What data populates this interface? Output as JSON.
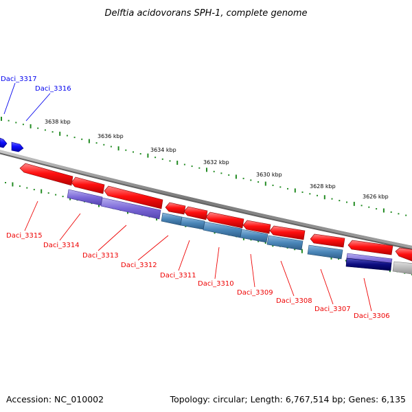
{
  "title": "Delftia acidovorans SPH-1, complete genome",
  "footer": {
    "accession": "Accession: NC_010002",
    "summary": "Topology: circular; Length: 6,767,514 bp; Genes: 6,135"
  },
  "colors": {
    "forward_gene": "#0000ee",
    "reverse_gene": "#ee0000",
    "backbone": "#808080",
    "tick": "#228b22",
    "cds_purple": "#7b68d8",
    "cds_steelblue": "#4a86b8",
    "cds_navy": "#0d0d80",
    "cds_gray": "#b8b8b8"
  },
  "ticks": [
    {
      "label": "3638 kbp"
    },
    {
      "label": "3636 kbp"
    },
    {
      "label": "3634 kbp"
    },
    {
      "label": "3632 kbp"
    },
    {
      "label": "3630 kbp"
    },
    {
      "label": "3628 kbp"
    },
    {
      "label": "3626 kbp"
    }
  ],
  "genes_forward": [
    {
      "label": "Daci_3317"
    },
    {
      "label": "Daci_3316"
    }
  ],
  "genes_reverse": [
    {
      "label": "Daci_3315"
    },
    {
      "label": "Daci_3314"
    },
    {
      "label": "Daci_3313"
    },
    {
      "label": "Daci_3312"
    },
    {
      "label": "Daci_3311"
    },
    {
      "label": "Daci_3310"
    },
    {
      "label": "Daci_3309"
    },
    {
      "label": "Daci_3308"
    },
    {
      "label": "Daci_3307"
    },
    {
      "label": "Daci_3306"
    }
  ]
}
